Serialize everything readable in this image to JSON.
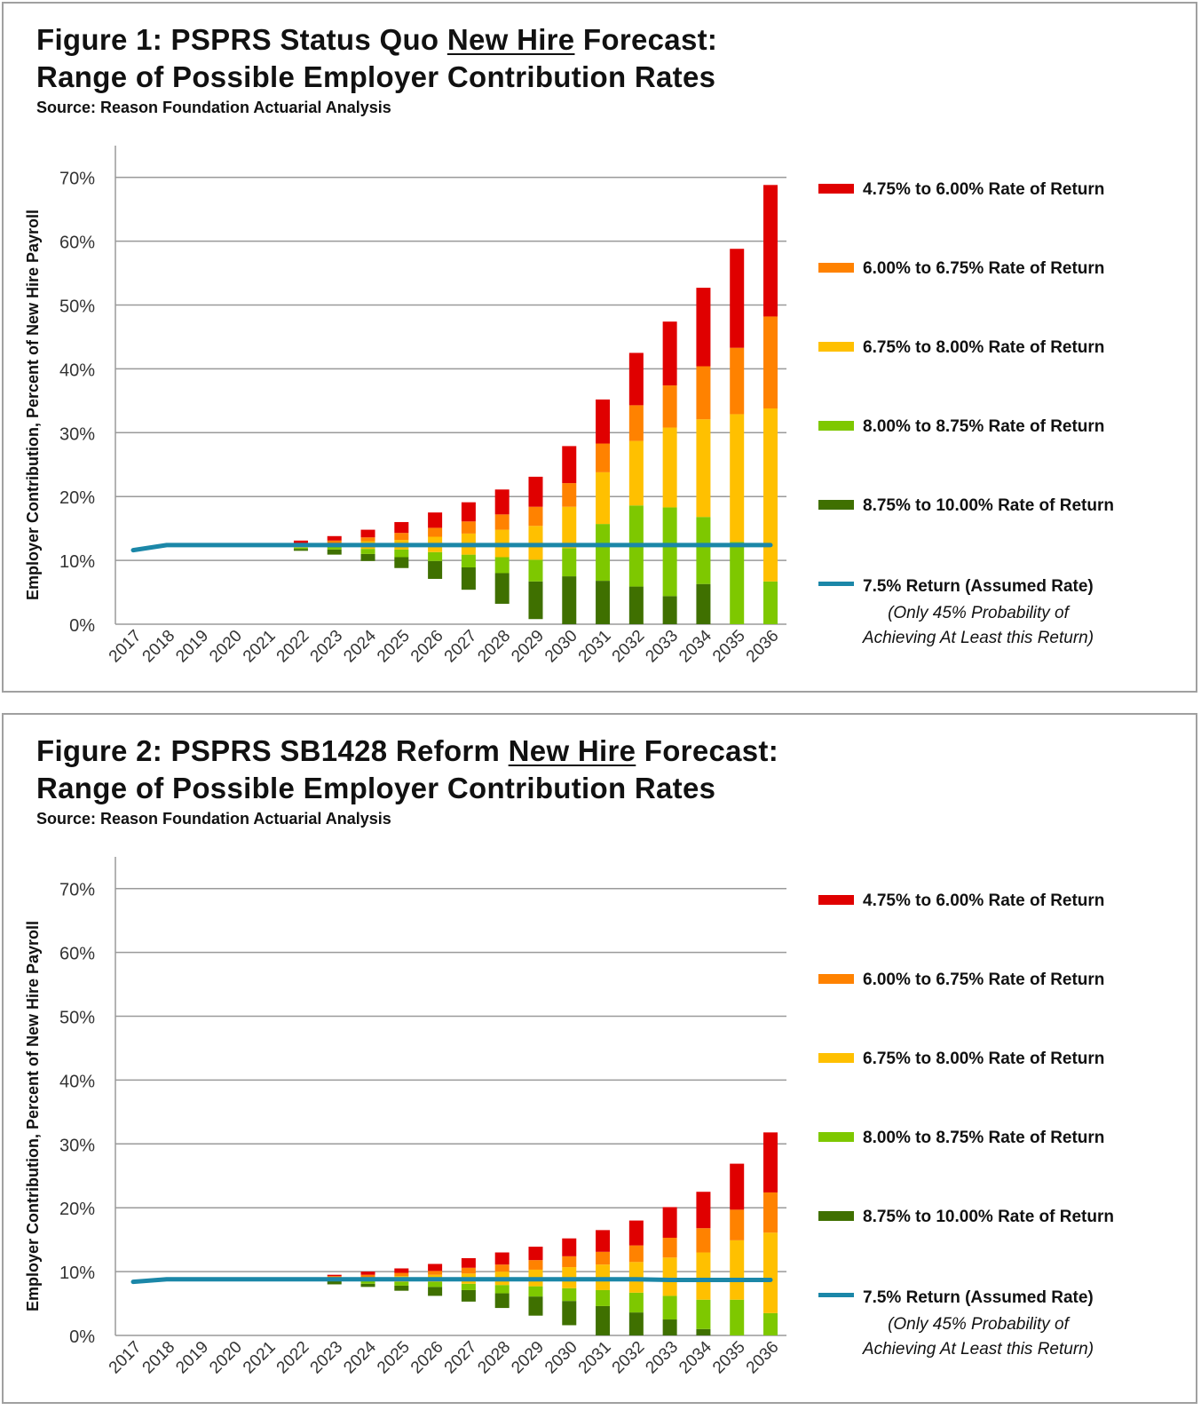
{
  "colors": {
    "r1": "#e00000",
    "r2": "#ff8200",
    "r3": "#ffc000",
    "r4": "#7ec800",
    "r5": "#3f7000",
    "line": "#1b87a8",
    "grid": "#9a9a9a"
  },
  "chart_data": [
    {
      "type": "bar",
      "stacked_range": true,
      "title_pre": "Figure 1: PSPRS Status Quo ",
      "title_underline": "New Hire",
      "title_post": " Forecast:",
      "title_line2": "Range of Possible Employer Contribution Rates",
      "source": "Source: Reason Foundation Actuarial Analysis",
      "ylabel": "Employer Contribution, Percent of New Hire Payroll",
      "ylim": [
        0,
        70
      ],
      "yticks": [
        "0%",
        "10%",
        "20%",
        "30%",
        "40%",
        "50%",
        "60%",
        "70%"
      ],
      "grid": true,
      "legend_position": "right",
      "categories": [
        "2017",
        "2018",
        "2019",
        "2020",
        "2021",
        "2022",
        "2023",
        "2024",
        "2025",
        "2026",
        "2027",
        "2028",
        "2029",
        "2030",
        "2031",
        "2032",
        "2033",
        "2034",
        "2035",
        "2036"
      ],
      "band_names": [
        "8.75% to 10.00% Rate of Return",
        "8.00% to 8.75% Rate of Return",
        "6.75% to 8.00% Rate of Return",
        "6.00% to 6.75% Rate of Return",
        "4.75% to 6.00% Rate of Return"
      ],
      "boundaries": [
        null,
        null,
        null,
        null,
        null,
        [
          11.5,
          11.8,
          12.0,
          12.3,
          12.7,
          13.1
        ],
        [
          10.9,
          11.7,
          12.2,
          12.6,
          13.1,
          13.8
        ],
        [
          9.9,
          11.0,
          11.8,
          13.0,
          13.6,
          14.8
        ],
        [
          8.8,
          10.5,
          11.7,
          13.2,
          14.3,
          16.0
        ],
        [
          7.1,
          9.9,
          11.3,
          13.7,
          15.1,
          17.5
        ],
        [
          5.4,
          8.9,
          10.9,
          14.2,
          16.1,
          19.1
        ],
        [
          3.2,
          8.0,
          10.5,
          14.8,
          17.2,
          21.1
        ],
        [
          0.8,
          6.7,
          10.1,
          15.4,
          18.4,
          23.1
        ],
        [
          0,
          7.5,
          11.9,
          18.4,
          22.1,
          27.9
        ],
        [
          0,
          6.8,
          15.7,
          23.8,
          28.3,
          35.2
        ],
        [
          0,
          5.9,
          18.6,
          28.7,
          34.3,
          42.5
        ],
        [
          0,
          4.4,
          18.3,
          30.8,
          37.4,
          47.4
        ],
        [
          0,
          6.3,
          16.8,
          32.1,
          40.4,
          52.7
        ],
        [
          0,
          0,
          12.9,
          32.9,
          43.3,
          58.8
        ],
        [
          0,
          0,
          6.7,
          33.8,
          48.2,
          68.8
        ]
      ],
      "line_name": "7.5% Return (Assumed Rate)",
      "line_note": [
        "(Only 45% Probability of",
        "Achieving At Least this Return)"
      ],
      "line_values": [
        11.6,
        12.4,
        12.4,
        12.4,
        12.4,
        12.4,
        12.4,
        12.4,
        12.4,
        12.4,
        12.4,
        12.4,
        12.4,
        12.4,
        12.4,
        12.4,
        12.4,
        12.4,
        12.4,
        12.4
      ]
    },
    {
      "type": "bar",
      "stacked_range": true,
      "title_pre": "Figure 2: PSPRS SB1428 Reform ",
      "title_underline": "New Hire",
      "title_post": " Forecast:",
      "title_line2": "Range of Possible Employer Contribution Rates",
      "source": "Source: Reason Foundation Actuarial Analysis",
      "ylabel": "Employer Contribution, Percent of New Hire Payroll",
      "ylim": [
        0,
        70
      ],
      "yticks": [
        "0%",
        "10%",
        "20%",
        "30%",
        "40%",
        "50%",
        "60%",
        "70%"
      ],
      "grid": true,
      "legend_position": "right",
      "categories": [
        "2017",
        "2018",
        "2019",
        "2020",
        "2021",
        "2022",
        "2023",
        "2024",
        "2025",
        "2026",
        "2027",
        "2028",
        "2029",
        "2030",
        "2031",
        "2032",
        "2033",
        "2034",
        "2035",
        "2036"
      ],
      "band_names": [
        "8.75% to 10.00% Rate of Return",
        "8.00% to 8.75% Rate of Return",
        "6.75% to 8.00% Rate of Return",
        "6.00% to 6.75% Rate of Return",
        "4.75% to 6.00% Rate of Return"
      ],
      "boundaries": [
        null,
        null,
        null,
        null,
        null,
        null,
        [
          8.0,
          8.5,
          8.8,
          9.0,
          9.3,
          9.5
        ],
        [
          7.6,
          8.1,
          8.6,
          9.0,
          9.5,
          10.0
        ],
        [
          7.0,
          7.8,
          8.4,
          9.3,
          9.8,
          10.5
        ],
        [
          6.2,
          7.6,
          8.4,
          9.5,
          10.1,
          11.2
        ],
        [
          5.3,
          7.1,
          8.1,
          9.7,
          10.6,
          12.1
        ],
        [
          4.3,
          6.6,
          7.9,
          10.0,
          11.1,
          13.0
        ],
        [
          3.1,
          6.1,
          7.7,
          10.3,
          11.8,
          13.9
        ],
        [
          1.6,
          5.4,
          7.4,
          10.7,
          12.4,
          15.2
        ],
        [
          0,
          4.6,
          7.1,
          11.1,
          13.1,
          16.5
        ],
        [
          0,
          3.6,
          6.7,
          11.5,
          14.1,
          18.0
        ],
        [
          0,
          2.5,
          6.2,
          12.2,
          15.3,
          20.1
        ],
        [
          0,
          1.0,
          5.6,
          13.0,
          16.8,
          22.5
        ],
        [
          0,
          0,
          5.6,
          14.9,
          19.7,
          26.9
        ],
        [
          0,
          0,
          3.5,
          16.1,
          22.4,
          31.8
        ]
      ],
      "line_name": "7.5% Return (Assumed Rate)",
      "line_note": [
        "(Only 45% Probability of",
        "Achieving At Least this Return)"
      ],
      "line_values": [
        8.4,
        8.8,
        8.8,
        8.8,
        8.8,
        8.8,
        8.8,
        8.8,
        8.8,
        8.8,
        8.8,
        8.8,
        8.8,
        8.8,
        8.8,
        8.8,
        8.7,
        8.7,
        8.7,
        8.7
      ]
    }
  ]
}
